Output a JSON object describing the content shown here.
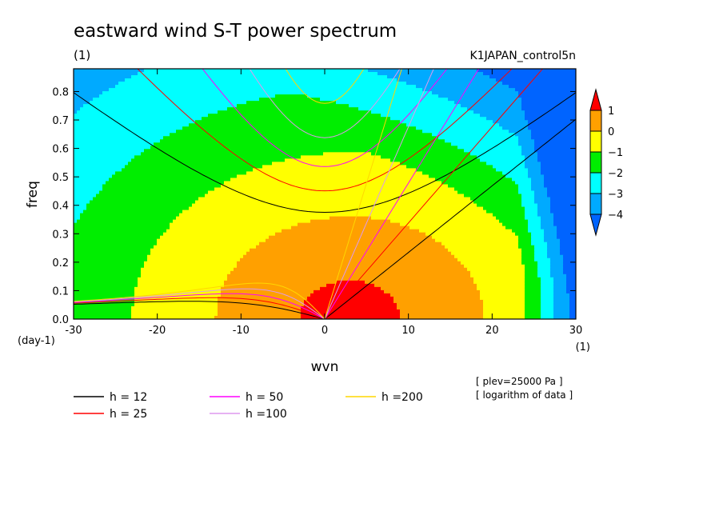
{
  "chart_data": {
    "type": "heatmap",
    "title": "eastward wind S-T power spectrum",
    "subtitle": "(1)",
    "dataset": "K1JAPAN_control5n",
    "xlabel": "wvn",
    "ylabel": "freq",
    "x_unit_label": "(1)",
    "y_unit_label": "(day-1)",
    "xlim": [
      -30,
      30
    ],
    "ylim": [
      0,
      0.88
    ],
    "x_ticks": [
      "-30",
      "-20",
      "-10",
      "0",
      "10",
      "20",
      "30"
    ],
    "x_tick_values": [
      -30,
      -20,
      -10,
      0,
      10,
      20,
      30
    ],
    "y_ticks": [
      "0.0",
      "0.1",
      "0.2",
      "0.3",
      "0.4",
      "0.5",
      "0.6",
      "0.7",
      "0.8"
    ],
    "y_tick_values": [
      0,
      0.1,
      0.2,
      0.3,
      0.4,
      0.5,
      0.6,
      0.7,
      0.8
    ],
    "colorbar": {
      "labels": [
        "1",
        "0",
        "−1",
        "−2",
        "−3",
        "−4"
      ],
      "levels": [
        1,
        0,
        -1,
        -2,
        -3,
        -4
      ],
      "colors": [
        "#ff0000",
        "#ffa000",
        "#ffff00",
        "#00ee00",
        "#00ffff",
        "#00aaff",
        "#0064ff"
      ],
      "color_ranges": [
        ">1",
        "0 to 1",
        "-1 to 0",
        "-2 to -1",
        "-3 to -2",
        "-4 to -3",
        "<-4"
      ]
    },
    "dispersion_curves": [
      {
        "label": "h = 12",
        "h": 12,
        "color": "#000000"
      },
      {
        "label": "h = 25",
        "h": 25,
        "color": "#ff0000"
      },
      {
        "label": "h = 50",
        "h": 50,
        "color": "#ff00ff"
      },
      {
        "label": "h =100",
        "h": 100,
        "color": "#dd99ee"
      },
      {
        "label": "h =200",
        "h": 200,
        "color": "#ffd700"
      }
    ],
    "annotations": [
      "[ plev=25000 Pa ]",
      "[ logarithm of data ]"
    ],
    "legend_position": "bottom",
    "grid": false
  }
}
